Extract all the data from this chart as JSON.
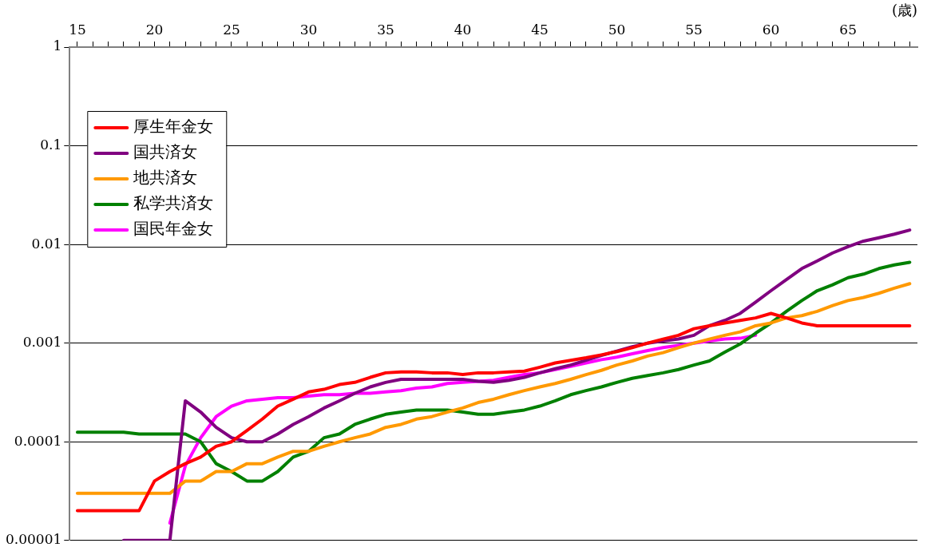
{
  "chart_data": {
    "type": "line",
    "xlabel": "(歳)",
    "legend": "top left",
    "grid": "y",
    "log": "y",
    "marker": "none",
    "line_style": "solid",
    "x": [
      15,
      16,
      17,
      18,
      19,
      20,
      21,
      22,
      23,
      24,
      25,
      26,
      27,
      28,
      29,
      30,
      31,
      32,
      33,
      34,
      35,
      36,
      37,
      38,
      39,
      40,
      41,
      42,
      43,
      44,
      45,
      46,
      47,
      48,
      49,
      50,
      51,
      52,
      53,
      54,
      55,
      56,
      57,
      58,
      59,
      60,
      61,
      62,
      63,
      64,
      65,
      66,
      67,
      68,
      69
    ],
    "xlim": [
      14.5,
      69.5
    ],
    "xticks": [
      {
        "value": 15,
        "label": "15"
      },
      {
        "value": 16,
        "label": null
      },
      {
        "value": 17,
        "label": null
      },
      {
        "value": 18,
        "label": null
      },
      {
        "value": 19,
        "label": null
      },
      {
        "value": 20,
        "label": "20"
      },
      {
        "value": 21,
        "label": null
      },
      {
        "value": 22,
        "label": null
      },
      {
        "value": 23,
        "label": null
      },
      {
        "value": 24,
        "label": null
      },
      {
        "value": 25,
        "label": "25"
      },
      {
        "value": 26,
        "label": null
      },
      {
        "value": 27,
        "label": null
      },
      {
        "value": 28,
        "label": null
      },
      {
        "value": 29,
        "label": null
      },
      {
        "value": 30,
        "label": "30"
      },
      {
        "value": 31,
        "label": null
      },
      {
        "value": 32,
        "label": null
      },
      {
        "value": 33,
        "label": null
      },
      {
        "value": 34,
        "label": null
      },
      {
        "value": 35,
        "label": "35"
      },
      {
        "value": 36,
        "label": null
      },
      {
        "value": 37,
        "label": null
      },
      {
        "value": 38,
        "label": null
      },
      {
        "value": 39,
        "label": null
      },
      {
        "value": 40,
        "label": "40"
      },
      {
        "value": 41,
        "label": null
      },
      {
        "value": 42,
        "label": null
      },
      {
        "value": 43,
        "label": null
      },
      {
        "value": 44,
        "label": null
      },
      {
        "value": 45,
        "label": "45"
      },
      {
        "value": 46,
        "label": null
      },
      {
        "value": 47,
        "label": null
      },
      {
        "value": 48,
        "label": null
      },
      {
        "value": 49,
        "label": null
      },
      {
        "value": 50,
        "label": "50"
      },
      {
        "value": 51,
        "label": null
      },
      {
        "value": 52,
        "label": null
      },
      {
        "value": 53,
        "label": null
      },
      {
        "value": 54,
        "label": null
      },
      {
        "value": 55,
        "label": "55"
      },
      {
        "value": 56,
        "label": null
      },
      {
        "value": 57,
        "label": null
      },
      {
        "value": 58,
        "label": null
      },
      {
        "value": 59,
        "label": null
      },
      {
        "value": 60,
        "label": "60"
      },
      {
        "value": 61,
        "label": null
      },
      {
        "value": 62,
        "label": null
      },
      {
        "value": 63,
        "label": null
      },
      {
        "value": 64,
        "label": null
      },
      {
        "value": 65,
        "label": "65"
      },
      {
        "value": 66,
        "label": null
      },
      {
        "value": 67,
        "label": null
      },
      {
        "value": 68,
        "label": null
      },
      {
        "value": 69,
        "label": null
      }
    ],
    "ylim": [
      1e-05,
      1
    ],
    "yticks": [
      {
        "value": 1,
        "label": "1"
      },
      {
        "value": 0.1,
        "label": "0.1"
      },
      {
        "value": 0.01,
        "label": "0.01"
      },
      {
        "value": 0.001,
        "label": "0.001"
      },
      {
        "value": 0.0001,
        "label": "0.0001"
      },
      {
        "value": 1e-05,
        "label": "0.00001"
      }
    ],
    "series": [
      {
        "name": "厚生年金女",
        "color": "#ff0000",
        "values": [
          2e-05,
          2e-05,
          2e-05,
          2e-05,
          2e-05,
          4e-05,
          5e-05,
          6e-05,
          7e-05,
          9e-05,
          0.0001,
          0.00013,
          0.00017,
          0.00023,
          0.00027,
          0.00032,
          0.00034,
          0.00038,
          0.0004,
          0.00045,
          0.0005,
          0.00051,
          0.00051,
          0.0005,
          0.0005,
          0.00048,
          0.0005,
          0.0005,
          0.00051,
          0.00052,
          0.00057,
          0.00063,
          0.00067,
          0.00071,
          0.00076,
          0.00082,
          0.0009,
          0.001,
          0.0011,
          0.0012,
          0.0014,
          0.0015,
          0.0016,
          0.0017,
          0.0018,
          0.002,
          0.0018,
          0.0016,
          0.0015,
          0.0015,
          0.0015,
          0.0015,
          0.0015,
          0.0015,
          0.0015
        ]
      },
      {
        "name": "国共済女",
        "color": "#800080",
        "values": [
          null,
          null,
          null,
          1e-05,
          1e-05,
          1e-05,
          1e-05,
          0.00026,
          0.0002,
          0.00014,
          0.00011,
          0.0001,
          0.0001,
          0.00012,
          0.00015,
          0.00018,
          0.00022,
          0.00026,
          0.00031,
          0.00036,
          0.0004,
          0.00043,
          0.00043,
          0.00043,
          0.00043,
          0.00043,
          0.00041,
          0.0004,
          0.00042,
          0.00045,
          0.0005,
          0.00055,
          0.0006,
          0.00067,
          0.00075,
          0.00083,
          0.00092,
          0.001,
          0.00105,
          0.0011,
          0.0012,
          0.0015,
          0.0017,
          0.002,
          0.0026,
          0.0034,
          0.0044,
          0.0057,
          0.0068,
          0.0082,
          0.0095,
          0.0108,
          0.0117,
          0.0127,
          0.014
        ]
      },
      {
        "name": "地共済女",
        "color": "#ff9900",
        "values": [
          3e-05,
          3e-05,
          3e-05,
          3e-05,
          3e-05,
          3e-05,
          3e-05,
          4e-05,
          4e-05,
          5e-05,
          5e-05,
          6e-05,
          6e-05,
          7e-05,
          8e-05,
          8e-05,
          9e-05,
          0.0001,
          0.00011,
          0.00012,
          0.00014,
          0.00015,
          0.00017,
          0.00018,
          0.0002,
          0.00022,
          0.00025,
          0.00027,
          0.0003,
          0.00033,
          0.00036,
          0.00039,
          0.00043,
          0.00048,
          0.00053,
          0.0006,
          0.00066,
          0.00074,
          0.0008,
          0.0009,
          0.001,
          0.0011,
          0.0012,
          0.0013,
          0.0015,
          0.0016,
          0.0018,
          0.0019,
          0.0021,
          0.0024,
          0.0027,
          0.0029,
          0.0032,
          0.0036,
          0.004
        ]
      },
      {
        "name": "私学共済女",
        "color": "#008000",
        "values": [
          0.000125,
          0.000125,
          0.000125,
          0.000125,
          0.00012,
          0.00012,
          0.00012,
          0.00012,
          0.0001,
          6e-05,
          5e-05,
          4e-05,
          4e-05,
          5e-05,
          7e-05,
          8e-05,
          0.00011,
          0.00012,
          0.00015,
          0.00017,
          0.00019,
          0.0002,
          0.00021,
          0.00021,
          0.00021,
          0.0002,
          0.00019,
          0.00019,
          0.0002,
          0.00021,
          0.00023,
          0.00026,
          0.0003,
          0.00033,
          0.00036,
          0.0004,
          0.00044,
          0.00047,
          0.0005,
          0.00054,
          0.0006,
          0.00066,
          0.00081,
          0.00098,
          0.00126,
          0.0016,
          0.0021,
          0.0027,
          0.0034,
          0.0039,
          0.0046,
          0.005,
          0.0057,
          0.0062,
          0.0066
        ]
      },
      {
        "name": "国民年金女",
        "color": "#ff00ff",
        "values": [
          null,
          null,
          null,
          null,
          null,
          null,
          1.5e-05,
          5.7e-05,
          0.00011,
          0.00018,
          0.00023,
          0.00026,
          0.00027,
          0.00028,
          0.00028,
          0.00029,
          0.0003,
          0.0003,
          0.00031,
          0.00031,
          0.00032,
          0.00033,
          0.00035,
          0.00036,
          0.00039,
          0.0004,
          0.00041,
          0.00042,
          0.00045,
          0.00048,
          0.0005,
          0.00054,
          0.00058,
          0.00063,
          0.00068,
          0.00072,
          0.00078,
          0.00084,
          0.0009,
          0.00095,
          0.001,
          0.00105,
          0.0011,
          0.00112,
          0.0012,
          null,
          null,
          null,
          null,
          null,
          null,
          null,
          null,
          null,
          null
        ]
      }
    ]
  }
}
